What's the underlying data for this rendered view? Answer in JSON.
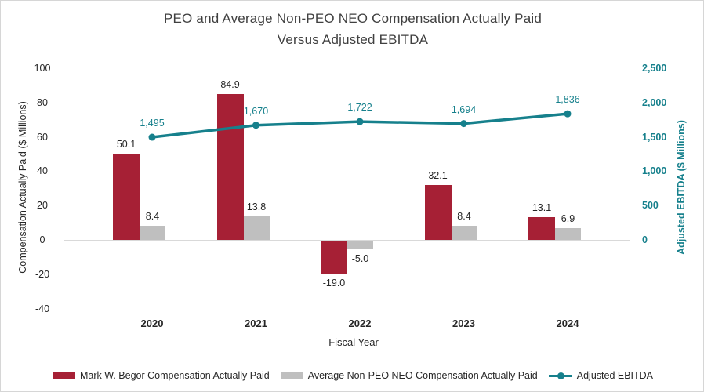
{
  "title": {
    "line1": "PEO and Average Non-PEO NEO Compensation Actually Paid",
    "line2": "Versus Adjusted EBITDA"
  },
  "chart_data": {
    "type": "combo-bar-line",
    "categories": [
      "2020",
      "2021",
      "2022",
      "2023",
      "2024"
    ],
    "series": [
      {
        "name": "Mark W. Begor Compensation Actually Paid",
        "type": "bar",
        "axis": "left",
        "color": "#A62035",
        "values": [
          50.1,
          84.9,
          -19.0,
          32.1,
          13.1
        ],
        "labels": [
          "50.1",
          "84.9",
          "-19.0",
          "32.1",
          "13.1"
        ]
      },
      {
        "name": "Average Non-PEO NEO Compensation Actually Paid",
        "type": "bar",
        "axis": "left",
        "color": "#BFBFBF",
        "values": [
          8.4,
          13.8,
          -5.0,
          8.4,
          6.9
        ],
        "labels": [
          "8.4",
          "13.8",
          "-5.0",
          "8.4",
          "6.9"
        ]
      },
      {
        "name": "Adjusted EBITDA",
        "type": "line",
        "axis": "right",
        "color": "#16808C",
        "values": [
          1495,
          1670,
          1722,
          1694,
          1836
        ],
        "labels": [
          "1,495",
          "1,670",
          "1,722",
          "1,694",
          "1,836"
        ]
      }
    ],
    "left_axis": {
      "title": "Compensation Actually Paid ($ Millions)",
      "min": -40,
      "max": 100,
      "step": 20,
      "ticks": [
        "100",
        "80",
        "60",
        "40",
        "20",
        "0",
        "-20",
        "-40"
      ]
    },
    "right_axis": {
      "title": "Adjusted EBITDA ($ Millions)",
      "min": 0,
      "max": 2500,
      "step": 500,
      "ticks": [
        "2,500",
        "2,000",
        "1,500",
        "1,000",
        "500",
        "0"
      ]
    },
    "x_axis": {
      "title": "Fiscal Year"
    },
    "legend_position": "bottom",
    "grid": false
  },
  "colors": {
    "peo_bar": "#A62035",
    "neo_bar": "#BFBFBF",
    "ebitda_line": "#16808C",
    "axis_line": "#D9D9D9",
    "text": "#262626",
    "title_text": "#404040"
  }
}
